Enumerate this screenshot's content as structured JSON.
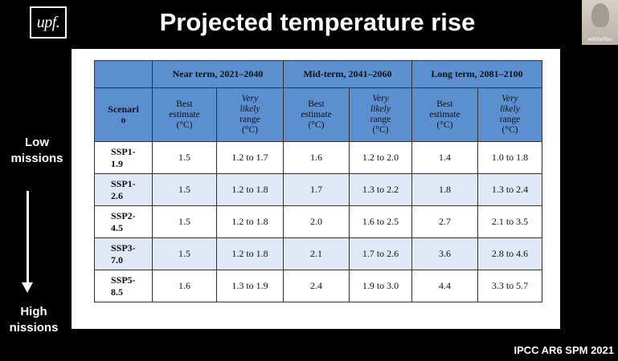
{
  "logo": {
    "text": "upf."
  },
  "slide": {
    "title": "Projected temperature rise"
  },
  "video": {
    "participant_name": "willsteffen"
  },
  "side_labels": {
    "low": "Low\nmissions",
    "high": "High\nnissions"
  },
  "table": {
    "scenario_header": "Scenari\no",
    "groups": [
      "Near term, 2021–2040",
      "Mid-term, 2041–2060",
      "Long term, 2081–2100"
    ],
    "sub_headers": {
      "best": "Best\nestimate\n(°C)",
      "likely_italic": "Very\nlikely",
      "likely_rest": "range\n(°C)"
    },
    "rows": [
      {
        "scenario": "SSP1-\n1.9",
        "values": [
          "1.5",
          "1.2 to 1.7",
          "1.6",
          "1.2 to 2.0",
          "1.4",
          "1.0 to 1.8"
        ]
      },
      {
        "scenario": "SSP1-\n2.6",
        "values": [
          "1.5",
          "1.2 to 1.8",
          "1.7",
          "1.3 to 2.2",
          "1.8",
          "1.3 to 2.4"
        ]
      },
      {
        "scenario": "SSP2-\n4.5",
        "values": [
          "1.5",
          "1.2 to 1.8",
          "2.0",
          "1.6 to 2.5",
          "2.7",
          "2.1 to 3.5"
        ]
      },
      {
        "scenario": "SSP3-\n7.0",
        "values": [
          "1.5",
          "1.2 to 1.8",
          "2.1",
          "1.7 to 2.6",
          "3.6",
          "2.8 to 4.6"
        ]
      },
      {
        "scenario": "SSP5-\n8.5",
        "values": [
          "1.6",
          "1.3 to 1.9",
          "2.4",
          "1.9 to 3.0",
          "4.4",
          "3.3 to 5.7"
        ]
      }
    ]
  },
  "source": "IPCC AR6 SPM 2021",
  "colors": {
    "header_blue": "#5b8fd0",
    "row_alt": "#dfe9f6",
    "background": "#000000"
  }
}
